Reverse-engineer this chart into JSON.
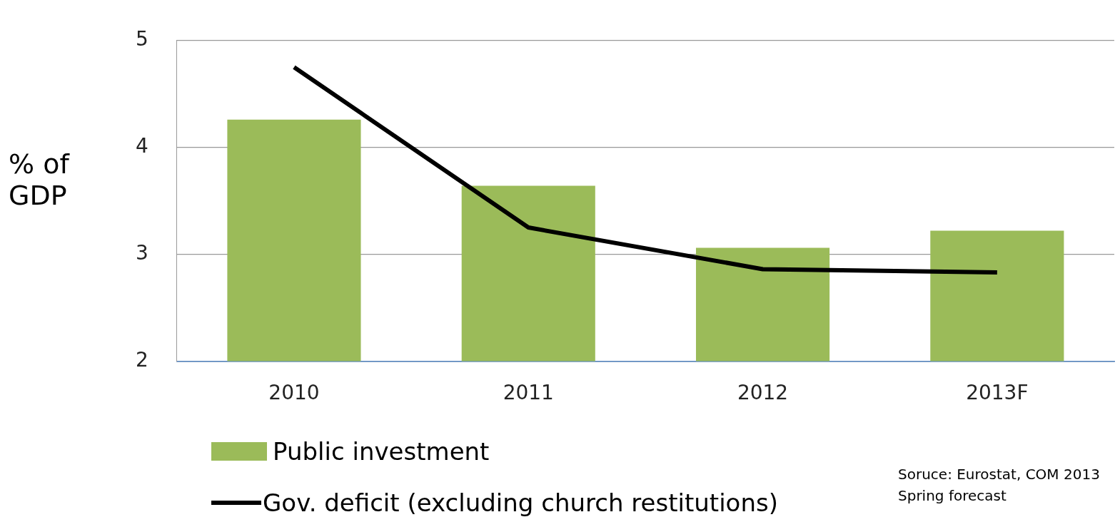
{
  "chart_data": {
    "type": "bar",
    "ylabel": "% of GDP",
    "categories": [
      "2010",
      "2011",
      "2012",
      "2013F"
    ],
    "series": [
      {
        "name": "Public investment",
        "color": "#9bbb59",
        "values": [
          4.26,
          3.64,
          3.06,
          3.22
        ]
      },
      {
        "name": "Gov. deficit (excluding church restitutions)",
        "type": "line",
        "color": "#000000",
        "values": [
          4.75,
          3.25,
          2.86,
          2.83
        ]
      }
    ],
    "ylim": [
      2,
      5
    ],
    "yticks": [
      2,
      3,
      4,
      5
    ],
    "grid": "y",
    "legend": "bottom left",
    "marker": "none",
    "line_style": "solid",
    "annotations": [
      "Soruce: Eurostat, COM 2013 Spring forecast"
    ]
  }
}
